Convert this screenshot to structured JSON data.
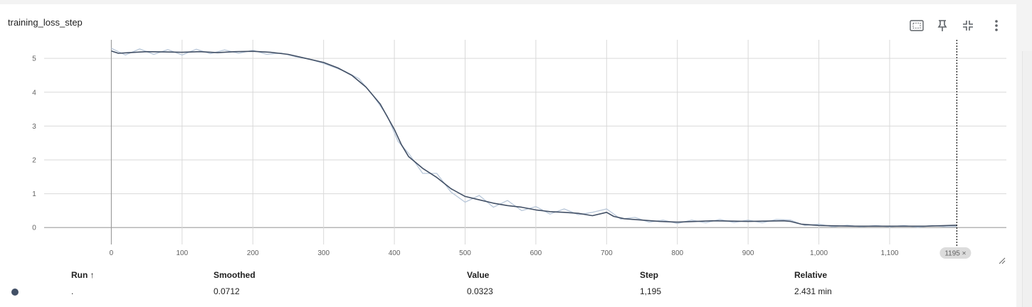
{
  "card": {
    "title": "training_loss_step"
  },
  "toolbar": {
    "fit_icon": "fit-domain-icon",
    "pin_icon": "pin-icon",
    "collapse_icon": "collapse-icon",
    "more_icon": "more-vert-icon"
  },
  "colors": {
    "smoothed": "#425066",
    "raw": "#b8c7d9",
    "grid": "#d9d9d9",
    "cursor": "#111111"
  },
  "chart_data": {
    "type": "line",
    "title": "",
    "xlabel": "",
    "ylabel": "",
    "xlim": [
      -95,
      1265
    ],
    "ylim": [
      -0.5,
      5.55
    ],
    "x_ticks": [
      0,
      100,
      200,
      300,
      400,
      500,
      600,
      700,
      800,
      900,
      1000,
      1100
    ],
    "x_tick_labels": [
      "0",
      "100",
      "200",
      "300",
      "400",
      "500",
      "600",
      "700",
      "800",
      "900",
      "1,000",
      "1,100"
    ],
    "y_ticks": [
      0,
      1,
      2,
      3,
      4,
      5
    ],
    "y_tick_labels": [
      "0",
      "1",
      "2",
      "3",
      "4",
      "5"
    ],
    "grid": true,
    "cursor_step": 1195,
    "cursor_label": "1195 ×",
    "series": [
      {
        "kind": "smoothed",
        "x": [
          0,
          10,
          25,
          50,
          75,
          100,
          125,
          150,
          175,
          200,
          225,
          250,
          275,
          300,
          320,
          340,
          360,
          380,
          400,
          410,
          420,
          440,
          460,
          480,
          500,
          520,
          540,
          560,
          580,
          600,
          620,
          640,
          660,
          680,
          700,
          710,
          725,
          750,
          775,
          800,
          850,
          900,
          950,
          960,
          975,
          1000,
          1050,
          1100,
          1150,
          1195
        ],
        "y": [
          5.22,
          5.15,
          5.17,
          5.2,
          5.19,
          5.18,
          5.2,
          5.17,
          5.2,
          5.21,
          5.18,
          5.12,
          5.0,
          4.88,
          4.72,
          4.5,
          4.15,
          3.65,
          2.9,
          2.45,
          2.1,
          1.75,
          1.48,
          1.15,
          0.92,
          0.82,
          0.72,
          0.65,
          0.6,
          0.52,
          0.47,
          0.45,
          0.42,
          0.35,
          0.45,
          0.33,
          0.26,
          0.22,
          0.18,
          0.16,
          0.2,
          0.18,
          0.2,
          0.18,
          0.1,
          0.06,
          0.04,
          0.04,
          0.04,
          0.07
        ]
      },
      {
        "kind": "raw",
        "x": [
          0,
          20,
          40,
          60,
          80,
          100,
          120,
          140,
          160,
          180,
          200,
          220,
          240,
          260,
          280,
          300,
          330,
          350,
          370,
          390,
          405,
          420,
          440,
          460,
          480,
          500,
          520,
          540,
          560,
          580,
          600,
          620,
          640,
          660,
          680,
          700,
          720,
          740,
          760,
          780,
          800,
          820,
          840,
          860,
          880,
          900,
          920,
          940,
          960,
          980,
          1000,
          1020,
          1040,
          1060,
          1080,
          1100,
          1120,
          1140,
          1160,
          1180,
          1195
        ],
        "y": [
          5.3,
          5.1,
          5.28,
          5.12,
          5.26,
          5.1,
          5.27,
          5.14,
          5.25,
          5.15,
          5.24,
          5.12,
          5.16,
          5.05,
          4.98,
          4.85,
          4.62,
          4.4,
          3.9,
          3.3,
          2.55,
          2.2,
          1.6,
          1.6,
          1.05,
          0.75,
          0.95,
          0.6,
          0.8,
          0.5,
          0.62,
          0.4,
          0.55,
          0.38,
          0.45,
          0.55,
          0.25,
          0.3,
          0.16,
          0.22,
          0.12,
          0.22,
          0.14,
          0.24,
          0.15,
          0.22,
          0.14,
          0.24,
          0.22,
          0.06,
          0.1,
          0.02,
          0.07,
          0.02,
          0.06,
          0.02,
          0.06,
          0.01,
          0.06,
          0.02,
          0.03
        ]
      }
    ]
  },
  "table": {
    "headers": {
      "run": "Run ↑",
      "smoothed": "Smoothed",
      "value": "Value",
      "step": "Step",
      "relative": "Relative"
    },
    "row": {
      "run": ".",
      "smoothed": "0.0712",
      "value": "0.0323",
      "step": "1,195",
      "relative": "2.431 min"
    }
  }
}
